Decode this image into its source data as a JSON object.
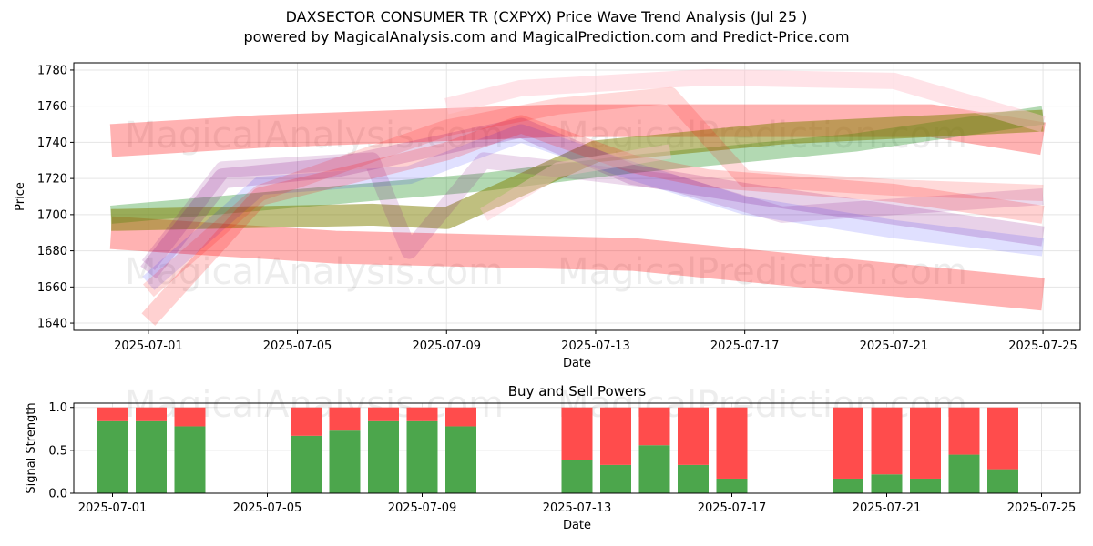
{
  "title": "DAXSECTOR CONSUMER TR (CXPYX) Price Wave Trend Analysis (Jul 25 )",
  "subtitle": "powered by MagicalAnalysis.com and MagicalPrediction.com and Predict-Price.com",
  "watermarks": [
    "MagicalAnalysis.com",
    "MagicalPrediction.com"
  ],
  "chart_data": [
    {
      "type": "area",
      "title": "",
      "xlabel": "Date",
      "ylabel": "Price",
      "xlim": [
        "2025-06-29",
        "2025-07-26"
      ],
      "ylim": [
        1636,
        1784
      ],
      "x_ticks": [
        "2025-07-01",
        "2025-07-05",
        "2025-07-09",
        "2025-07-13",
        "2025-07-17",
        "2025-07-21",
        "2025-07-25"
      ],
      "y_ticks": [
        1640,
        1660,
        1680,
        1700,
        1720,
        1740,
        1760,
        1780
      ],
      "grid": true,
      "colors": {
        "red": "#ff0000",
        "green": "#008000",
        "blue": "#0000ff",
        "purple": "#800080",
        "olive": "#808000",
        "pink": "#ffc0cb"
      },
      "bands": [
        {
          "color": "red",
          "opacity": 0.3,
          "width": 36,
          "points": [
            [
              "2025-06-30",
              1741
            ],
            [
              "2025-07-04",
              1746
            ],
            [
              "2025-07-12",
              1752
            ],
            [
              "2025-07-22",
              1752
            ],
            [
              "2025-07-25",
              1742
            ]
          ]
        },
        {
          "color": "red",
          "opacity": 0.3,
          "width": 36,
          "points": [
            [
              "2025-06-30",
              1690
            ],
            [
              "2025-07-06",
              1682
            ],
            [
              "2025-07-14",
              1678
            ],
            [
              "2025-07-18",
              1670
            ],
            [
              "2025-07-25",
              1656
            ]
          ]
        },
        {
          "color": "green",
          "opacity": 0.3,
          "width": 20,
          "points": [
            [
              "2025-06-30",
              1700
            ],
            [
              "2025-07-10",
              1718
            ],
            [
              "2025-07-14",
              1728
            ],
            [
              "2025-07-20",
              1740
            ],
            [
              "2025-07-25",
              1755
            ]
          ]
        },
        {
          "color": "olive",
          "opacity": 0.5,
          "width": 24,
          "points": [
            [
              "2025-06-30",
              1697
            ],
            [
              "2025-07-07",
              1700
            ],
            [
              "2025-07-09",
              1698
            ],
            [
              "2025-07-13",
              1735
            ],
            [
              "2025-07-18",
              1745
            ],
            [
              "2025-07-25",
              1752
            ]
          ]
        },
        {
          "color": "purple",
          "opacity": 0.18,
          "width": 22,
          "points": [
            [
              "2025-07-01",
              1668
            ],
            [
              "2025-07-03",
              1720
            ],
            [
              "2025-07-06",
              1726
            ],
            [
              "2025-07-11",
              1748
            ],
            [
              "2025-07-14",
              1722
            ],
            [
              "2025-07-17",
              1712
            ],
            [
              "2025-07-21",
              1700
            ],
            [
              "2025-07-25",
              1688
            ]
          ]
        },
        {
          "color": "blue",
          "opacity": 0.12,
          "width": 20,
          "points": [
            [
              "2025-07-01",
              1662
            ],
            [
              "2025-07-04",
              1716
            ],
            [
              "2025-07-08",
              1722
            ],
            [
              "2025-07-11",
              1745
            ],
            [
              "2025-07-14",
              1724
            ],
            [
              "2025-07-17",
              1705
            ],
            [
              "2025-07-21",
              1692
            ],
            [
              "2025-07-25",
              1682
            ]
          ]
        },
        {
          "color": "purple",
          "opacity": 0.15,
          "width": 18,
          "points": [
            [
              "2025-07-01",
              1672
            ],
            [
              "2025-07-03",
              1725
            ],
            [
              "2025-07-07",
              1730
            ],
            [
              "2025-07-08",
              1680
            ],
            [
              "2025-07-10",
              1730
            ],
            [
              "2025-07-15",
              1718
            ],
            [
              "2025-07-18",
              1700
            ],
            [
              "2025-07-25",
              1710
            ]
          ]
        },
        {
          "color": "red",
          "opacity": 0.18,
          "width": 20,
          "points": [
            [
              "2025-07-01",
              1642
            ],
            [
              "2025-07-04",
              1710
            ],
            [
              "2025-07-09",
              1735
            ],
            [
              "2025-07-11",
              1750
            ],
            [
              "2025-07-14",
              1728
            ],
            [
              "2025-07-16",
              1720
            ],
            [
              "2025-07-21",
              1712
            ],
            [
              "2025-07-25",
              1700
            ]
          ]
        },
        {
          "color": "pink",
          "opacity": 0.45,
          "width": 18,
          "points": [
            [
              "2025-07-09",
              1760
            ],
            [
              "2025-07-11",
              1770
            ],
            [
              "2025-07-16",
              1776
            ],
            [
              "2025-07-21",
              1774
            ],
            [
              "2025-07-25",
              1750
            ]
          ]
        },
        {
          "color": "red",
          "opacity": 0.15,
          "width": 18,
          "points": [
            [
              "2025-07-01",
              1658
            ],
            [
              "2025-07-04",
              1712
            ],
            [
              "2025-07-09",
              1748
            ],
            [
              "2025-07-12",
              1760
            ],
            [
              "2025-07-15",
              1766
            ],
            [
              "2025-07-17",
              1720
            ],
            [
              "2025-07-21",
              1715
            ],
            [
              "2025-07-25",
              1712
            ]
          ]
        },
        {
          "color": "pink",
          "opacity": 0.4,
          "width": 16,
          "points": [
            [
              "2025-07-10",
              1700
            ],
            [
              "2025-07-12",
              1725
            ],
            [
              "2025-07-15",
              1735
            ]
          ]
        }
      ]
    },
    {
      "type": "bar",
      "title": "Buy and Sell Powers",
      "xlabel": "Date",
      "ylabel": "Signal Strength",
      "xlim": [
        "2025-06-30",
        "2025-07-26"
      ],
      "ylim": [
        0,
        1.05
      ],
      "x_ticks": [
        "2025-07-01",
        "2025-07-05",
        "2025-07-09",
        "2025-07-13",
        "2025-07-17",
        "2025-07-21",
        "2025-07-25"
      ],
      "y_ticks": [
        "0.0",
        "0.5",
        "1.0"
      ],
      "grid": true,
      "categories": [
        "2025-07-01",
        "2025-07-02",
        "2025-07-03",
        "2025-07-06",
        "2025-07-07",
        "2025-07-08",
        "2025-07-09",
        "2025-07-10",
        "2025-07-13",
        "2025-07-14",
        "2025-07-15",
        "2025-07-16",
        "2025-07-17",
        "2025-07-20",
        "2025-07-21",
        "2025-07-22",
        "2025-07-23",
        "2025-07-24"
      ],
      "series": [
        {
          "color": "#4ca64c",
          "values": [
            0.84,
            0.84,
            0.78,
            0.67,
            0.73,
            0.84,
            0.84,
            0.78,
            0.39,
            0.33,
            0.56,
            0.33,
            0.17,
            0.17,
            0.22,
            0.17,
            0.45,
            0.28
          ]
        },
        {
          "color": "#ff4c4c",
          "values": [
            0.16,
            0.16,
            0.22,
            0.33,
            0.27,
            0.16,
            0.16,
            0.22,
            0.61,
            0.67,
            0.44,
            0.67,
            0.83,
            0.83,
            0.78,
            0.83,
            0.55,
            0.72
          ]
        }
      ]
    }
  ]
}
